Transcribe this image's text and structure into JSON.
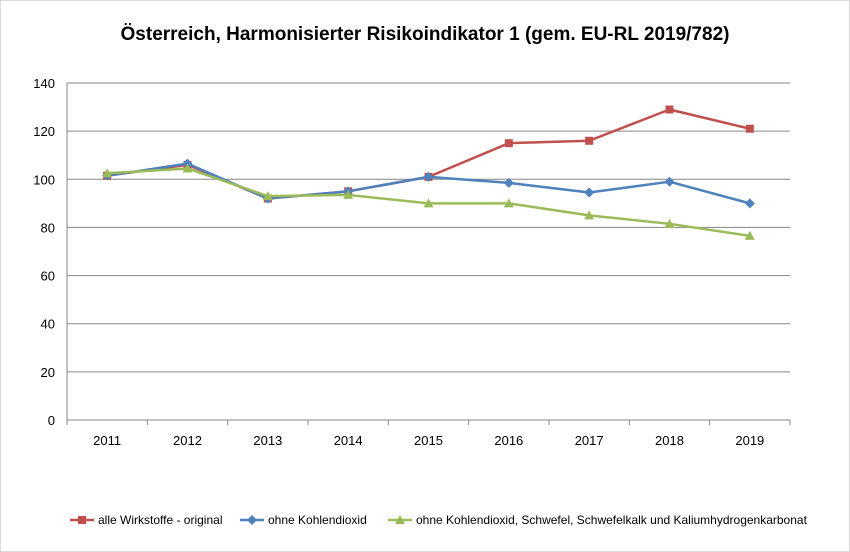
{
  "chart_data": {
    "type": "line",
    "title": "Österreich, Harmonisierter Risikoindikator 1 (gem. EU-RL 2019/782)",
    "xlabel": "",
    "ylabel": "",
    "categories": [
      "2011",
      "2012",
      "2013",
      "2014",
      "2015",
      "2016",
      "2017",
      "2018",
      "2019"
    ],
    "ylim": [
      0,
      140
    ],
    "yticks": [
      0,
      20,
      40,
      60,
      80,
      100,
      120,
      140
    ],
    "grid": true,
    "legend_position": "bottom",
    "series": [
      {
        "name": "alle Wirkstoffe - original",
        "color": "#c0504d",
        "marker": "square",
        "values": [
          101.5,
          106,
          92,
          95,
          101,
          115,
          116,
          129,
          121
        ]
      },
      {
        "name": "ohne Kohlendioxid",
        "color": "#4f81bd",
        "marker": "diamond",
        "values": [
          101.5,
          106.5,
          92,
          95,
          101,
          98.5,
          94.5,
          99,
          90
        ]
      },
      {
        "name": "ohne Kohlendioxid, Schwefel, Schwefelkalk und Kaliumhydrogenkarbonat",
        "color": "#9bbb59",
        "marker": "triangle",
        "values": [
          102.5,
          104.5,
          93,
          93.5,
          90,
          90,
          85,
          81.5,
          76.5
        ]
      }
    ]
  }
}
